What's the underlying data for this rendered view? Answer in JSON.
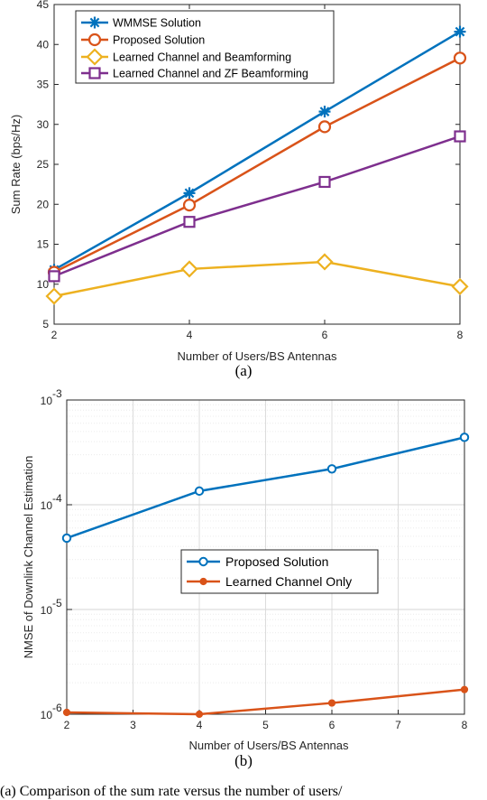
{
  "chart_data": [
    {
      "type": "line",
      "panel_label": "(a)",
      "xlabel": "Number of Users/BS Antennas",
      "ylabel": "Sum Rate (bps/Hz)",
      "xlim": [
        2,
        8
      ],
      "ylim": [
        5,
        45
      ],
      "x": [
        2,
        4,
        6,
        8
      ],
      "xticks": [
        2,
        4,
        6,
        8
      ],
      "yticks": [
        5,
        10,
        15,
        20,
        25,
        30,
        35,
        40,
        45
      ],
      "grid": false,
      "legend_position": "top-left",
      "series": [
        {
          "name": "WMMSE Solution",
          "values": [
            11.8,
            21.4,
            31.6,
            41.6
          ],
          "color": "#0072BD",
          "marker": "asterisk"
        },
        {
          "name": "Proposed Solution",
          "values": [
            11.5,
            19.9,
            29.7,
            38.3
          ],
          "color": "#D95319",
          "marker": "circle"
        },
        {
          "name": "Learned Channel and Beamforming",
          "values": [
            8.5,
            11.9,
            12.8,
            9.7
          ],
          "color": "#EDB120",
          "marker": "diamond"
        },
        {
          "name": "Learned Channel and ZF Beamforming",
          "values": [
            11.0,
            17.8,
            22.8,
            28.5
          ],
          "color": "#7E2F8E",
          "marker": "square"
        }
      ]
    },
    {
      "type": "line",
      "panel_label": "(b)",
      "xlabel": "Number of Users/BS Antennas",
      "ylabel": "NMSE of Downlink Channel Estimation",
      "xlim": [
        2,
        8
      ],
      "ylim": [
        1e-06,
        0.001
      ],
      "yscale": "log",
      "x": [
        2,
        4,
        6,
        8
      ],
      "xticks": [
        2,
        3,
        4,
        5,
        6,
        7,
        8
      ],
      "ytick_labels": [
        {
          "base": "10",
          "exp": "-6",
          "value": 1e-06
        },
        {
          "base": "10",
          "exp": "-5",
          "value": 1e-05
        },
        {
          "base": "10",
          "exp": "-4",
          "value": 0.0001
        },
        {
          "base": "10",
          "exp": "-3",
          "value": 0.001
        }
      ],
      "grid": true,
      "legend_position": "center",
      "series": [
        {
          "name": "Proposed Solution",
          "values": [
            4.8e-05,
            0.000135,
            0.00022,
            0.00044
          ],
          "color": "#0072BD",
          "marker": "circle"
        },
        {
          "name": "Learned Channel Only",
          "values": [
            1.04e-06,
            1e-06,
            1.28e-06,
            1.72e-06
          ],
          "color": "#D95319",
          "marker": "dot"
        }
      ]
    }
  ],
  "caption_fragment": "(a) Comparison of the sum rate versus the number of users/"
}
